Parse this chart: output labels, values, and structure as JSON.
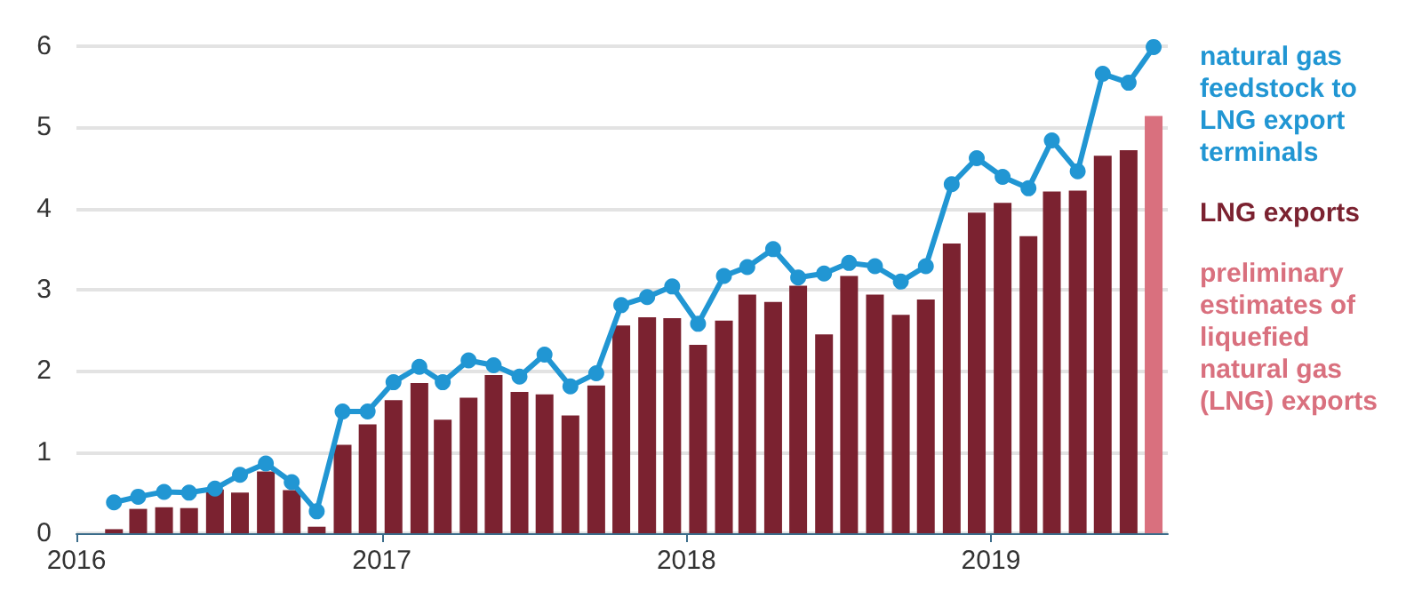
{
  "chart_data": {
    "type": "bar",
    "x": [
      "2016-02-15",
      "2016-03-15",
      "2016-04-15",
      "2016-05-15",
      "2016-06-15",
      "2016-07-15",
      "2016-08-15",
      "2016-09-15",
      "2016-10-15",
      "2016-11-15",
      "2016-12-15",
      "2017-01-15",
      "2017-02-15",
      "2017-03-15",
      "2017-04-15",
      "2017-05-15",
      "2017-06-15",
      "2017-07-15",
      "2017-08-15",
      "2017-09-15",
      "2017-10-15",
      "2017-11-15",
      "2017-12-15",
      "2018-01-15",
      "2018-02-15",
      "2018-03-15",
      "2018-04-15",
      "2018-05-15",
      "2018-06-15",
      "2018-07-15",
      "2018-08-15",
      "2018-09-15",
      "2018-10-15",
      "2018-11-15",
      "2018-12-15",
      "2019-01-15",
      "2019-02-15",
      "2019-03-15",
      "2019-04-15",
      "2019-05-15",
      "2019-06-15",
      "2019-07-15"
    ],
    "series": [
      {
        "name": "natural gas feedstock to LNG export terminals",
        "type": "line",
        "color": "#2196d3",
        "values": [
          0.38,
          0.45,
          0.51,
          0.5,
          0.55,
          0.72,
          0.86,
          0.63,
          0.27,
          1.5,
          1.5,
          1.86,
          2.05,
          1.86,
          2.13,
          2.07,
          1.93,
          2.2,
          1.81,
          1.97,
          2.81,
          2.91,
          3.04,
          2.58,
          3.17,
          3.28,
          3.5,
          3.15,
          3.2,
          3.33,
          3.29,
          3.1,
          3.29,
          4.3,
          4.62,
          4.39,
          4.25,
          4.84,
          4.46,
          5.66,
          5.55,
          5.99
        ]
      },
      {
        "name": "LNG exports",
        "type": "bar",
        "color": "#7b2230",
        "values": [
          0.05,
          0.3,
          0.32,
          0.31,
          0.54,
          0.5,
          0.76,
          0.53,
          0.08,
          1.09,
          1.34,
          1.64,
          1.85,
          1.4,
          1.67,
          1.95,
          1.74,
          1.71,
          1.45,
          1.82,
          2.56,
          2.66,
          2.65,
          2.32,
          2.62,
          2.94,
          2.85,
          3.05,
          2.45,
          3.17,
          2.94,
          2.69,
          2.88,
          3.57,
          3.95,
          4.07,
          3.66,
          4.21,
          4.22,
          4.65,
          4.72,
          null
        ]
      },
      {
        "name": "preliminary estimates of liquefied natural gas (LNG) exports",
        "color": "#d9707e",
        "values": [
          null,
          null,
          null,
          null,
          null,
          null,
          null,
          null,
          null,
          null,
          null,
          null,
          null,
          null,
          null,
          null,
          null,
          null,
          null,
          null,
          null,
          null,
          null,
          null,
          null,
          null,
          null,
          null,
          null,
          null,
          null,
          null,
          null,
          null,
          null,
          null,
          null,
          null,
          null,
          null,
          null,
          5.14
        ]
      }
    ],
    "xlim": [
      "2016-01-01",
      "2019-08-01"
    ],
    "xticks": [
      "2016",
      "2017",
      "2018",
      "2019"
    ],
    "ylim": [
      0,
      6
    ],
    "yticks": [
      0,
      1,
      2,
      3,
      4,
      5,
      6
    ],
    "grid": "y",
    "legend": "right",
    "marker": "circle"
  }
}
